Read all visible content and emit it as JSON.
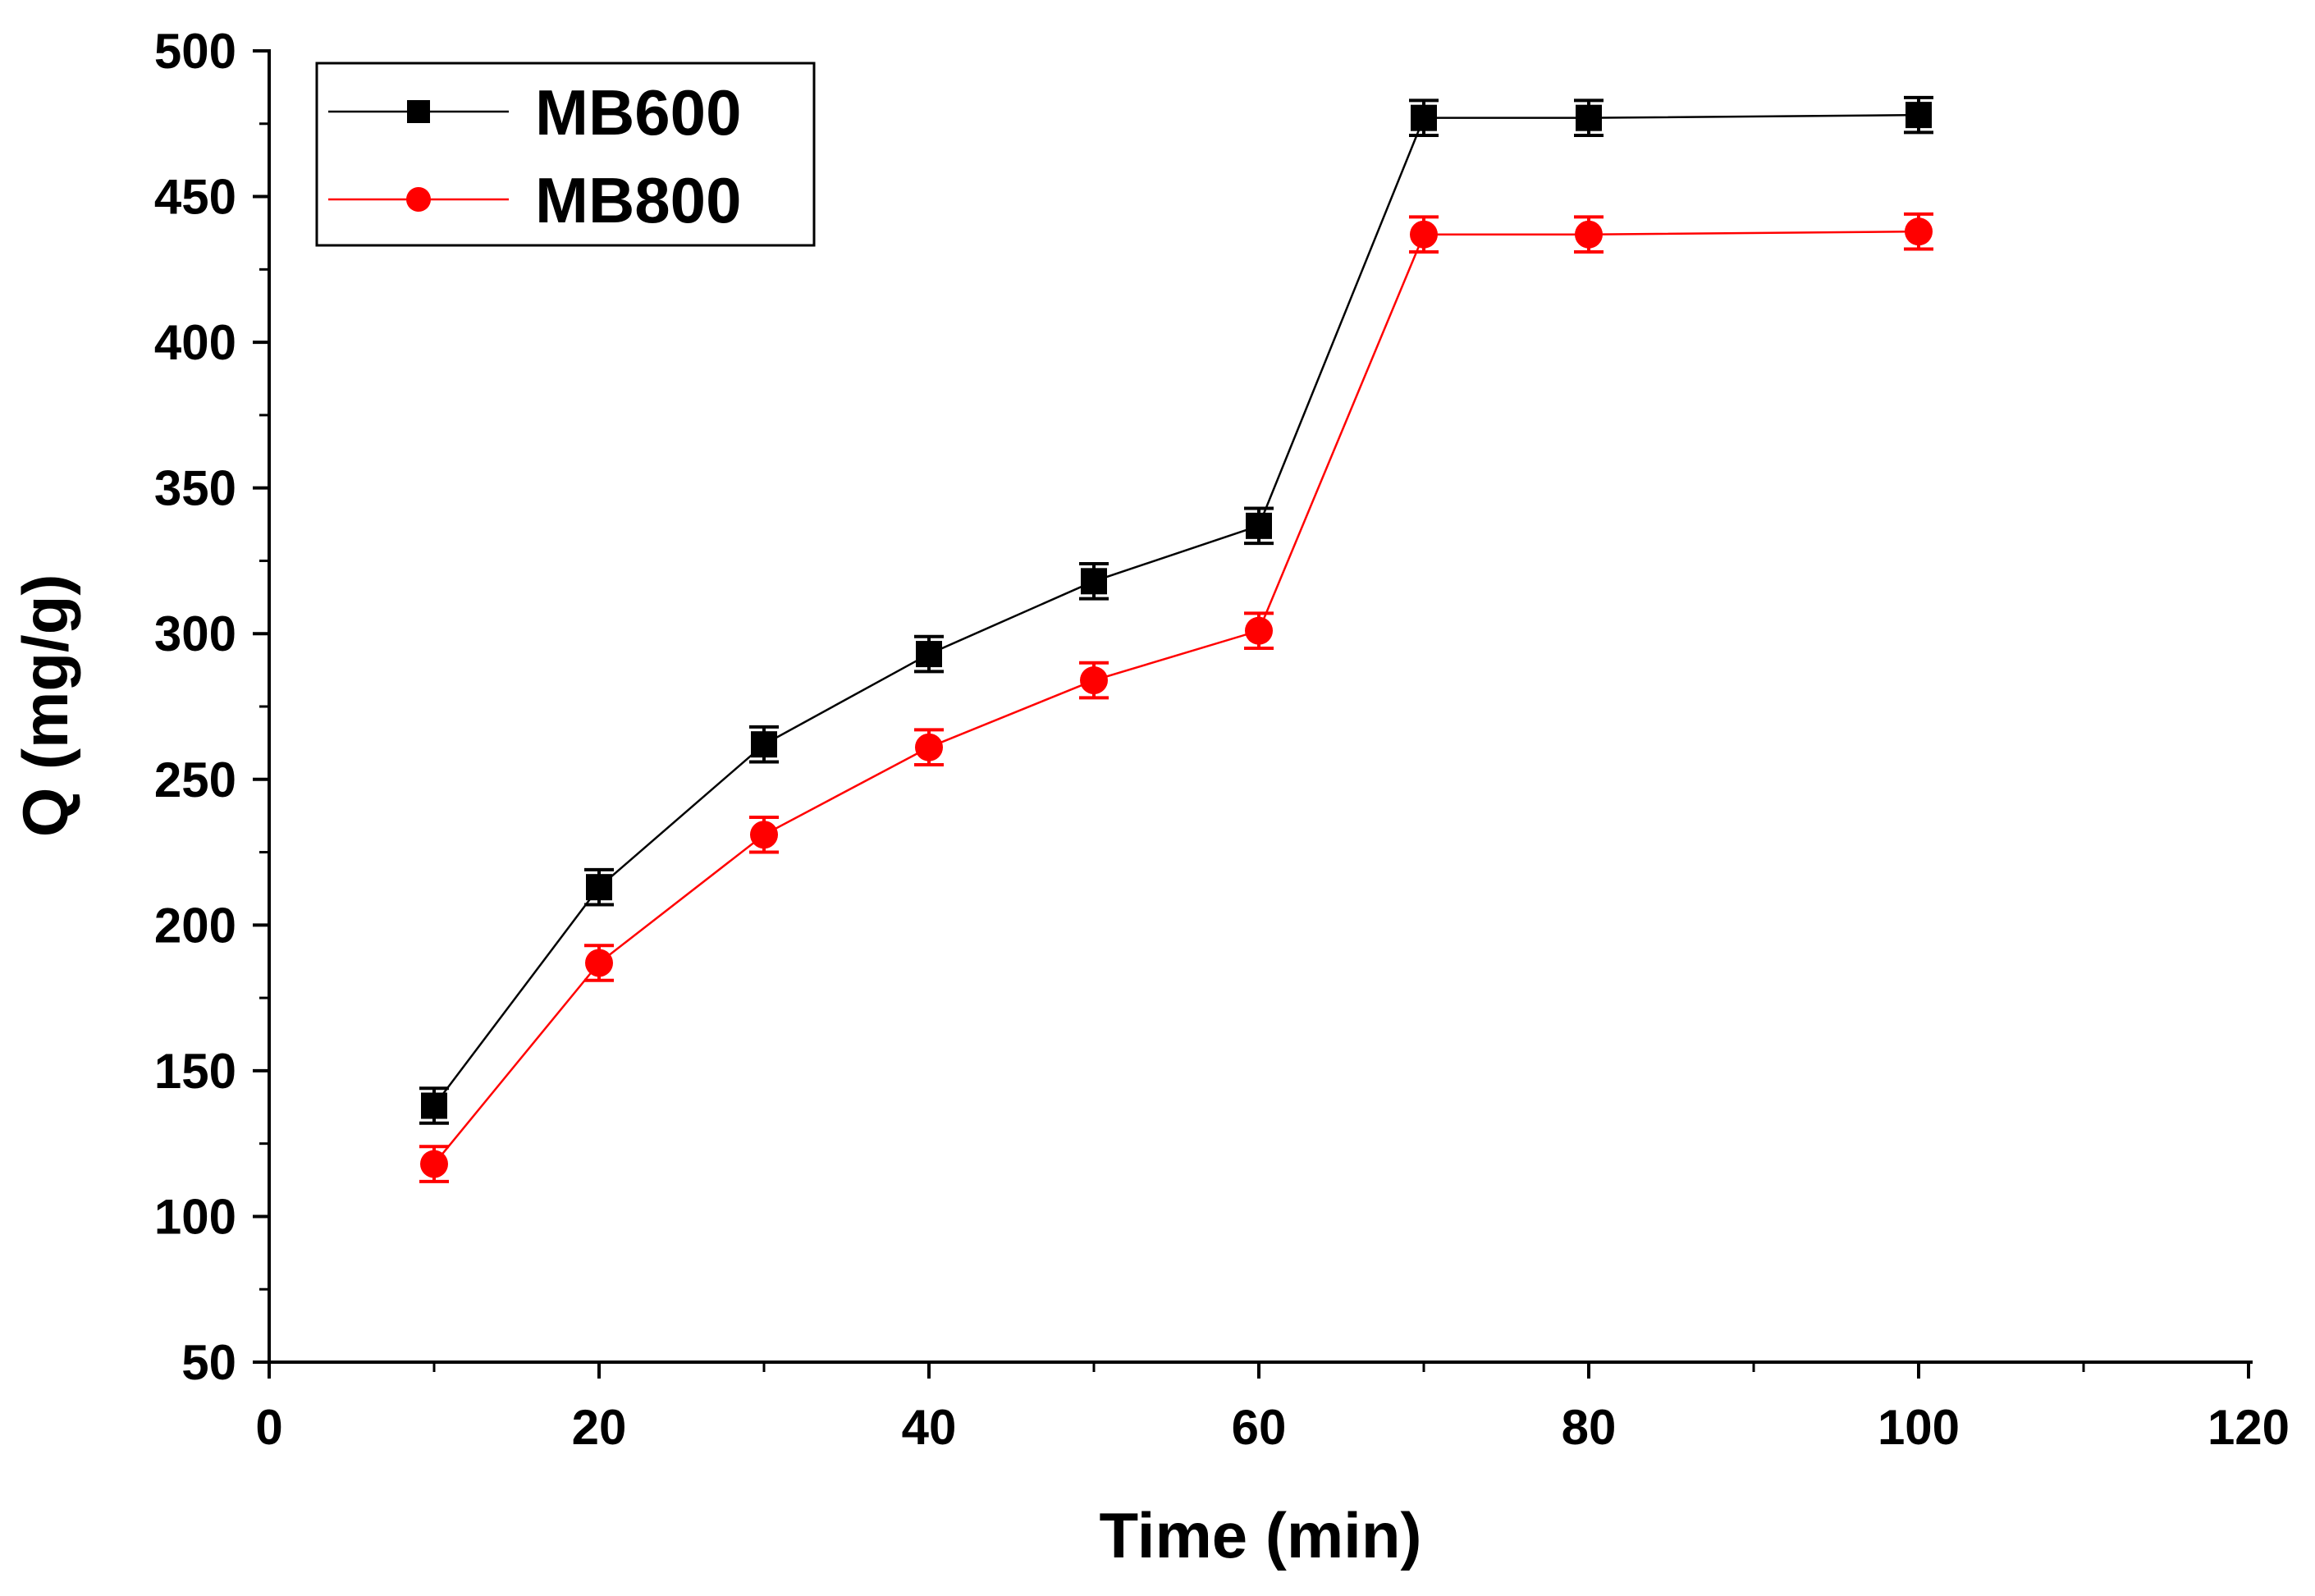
{
  "chart_data": {
    "type": "line",
    "title": "",
    "xlabel": "Time (min)",
    "ylabel": "Q (mg/g)",
    "xlim": [
      0,
      120
    ],
    "ylim": [
      50,
      500
    ],
    "xticks": [
      0,
      20,
      40,
      60,
      80,
      100,
      120
    ],
    "xtick_labels": [
      "0",
      "20",
      "40",
      "60",
      "80",
      "100",
      "120"
    ],
    "yticks": [
      50,
      100,
      150,
      200,
      250,
      300,
      350,
      400,
      450,
      500
    ],
    "ytick_labels": [
      "50",
      "100",
      "150",
      "200",
      "250",
      "300",
      "350",
      "400",
      "450",
      "500"
    ],
    "grid": false,
    "legend_position": "top-left",
    "x": [
      10,
      20,
      30,
      40,
      50,
      60,
      70,
      80,
      100
    ],
    "series": [
      {
        "name": "MB600",
        "color": "#000000",
        "marker": "square",
        "values": [
          138,
          213,
          262,
          293,
          318,
          337,
          477,
          477,
          478
        ],
        "errors": [
          6,
          6,
          6,
          6,
          6,
          6,
          6,
          6,
          6
        ]
      },
      {
        "name": "MB800",
        "color": "#ff0000",
        "marker": "circle",
        "values": [
          118,
          187,
          231,
          261,
          284,
          301,
          437,
          437,
          438
        ],
        "errors": [
          6,
          6,
          6,
          6,
          6,
          6,
          6,
          6,
          6
        ]
      }
    ]
  }
}
